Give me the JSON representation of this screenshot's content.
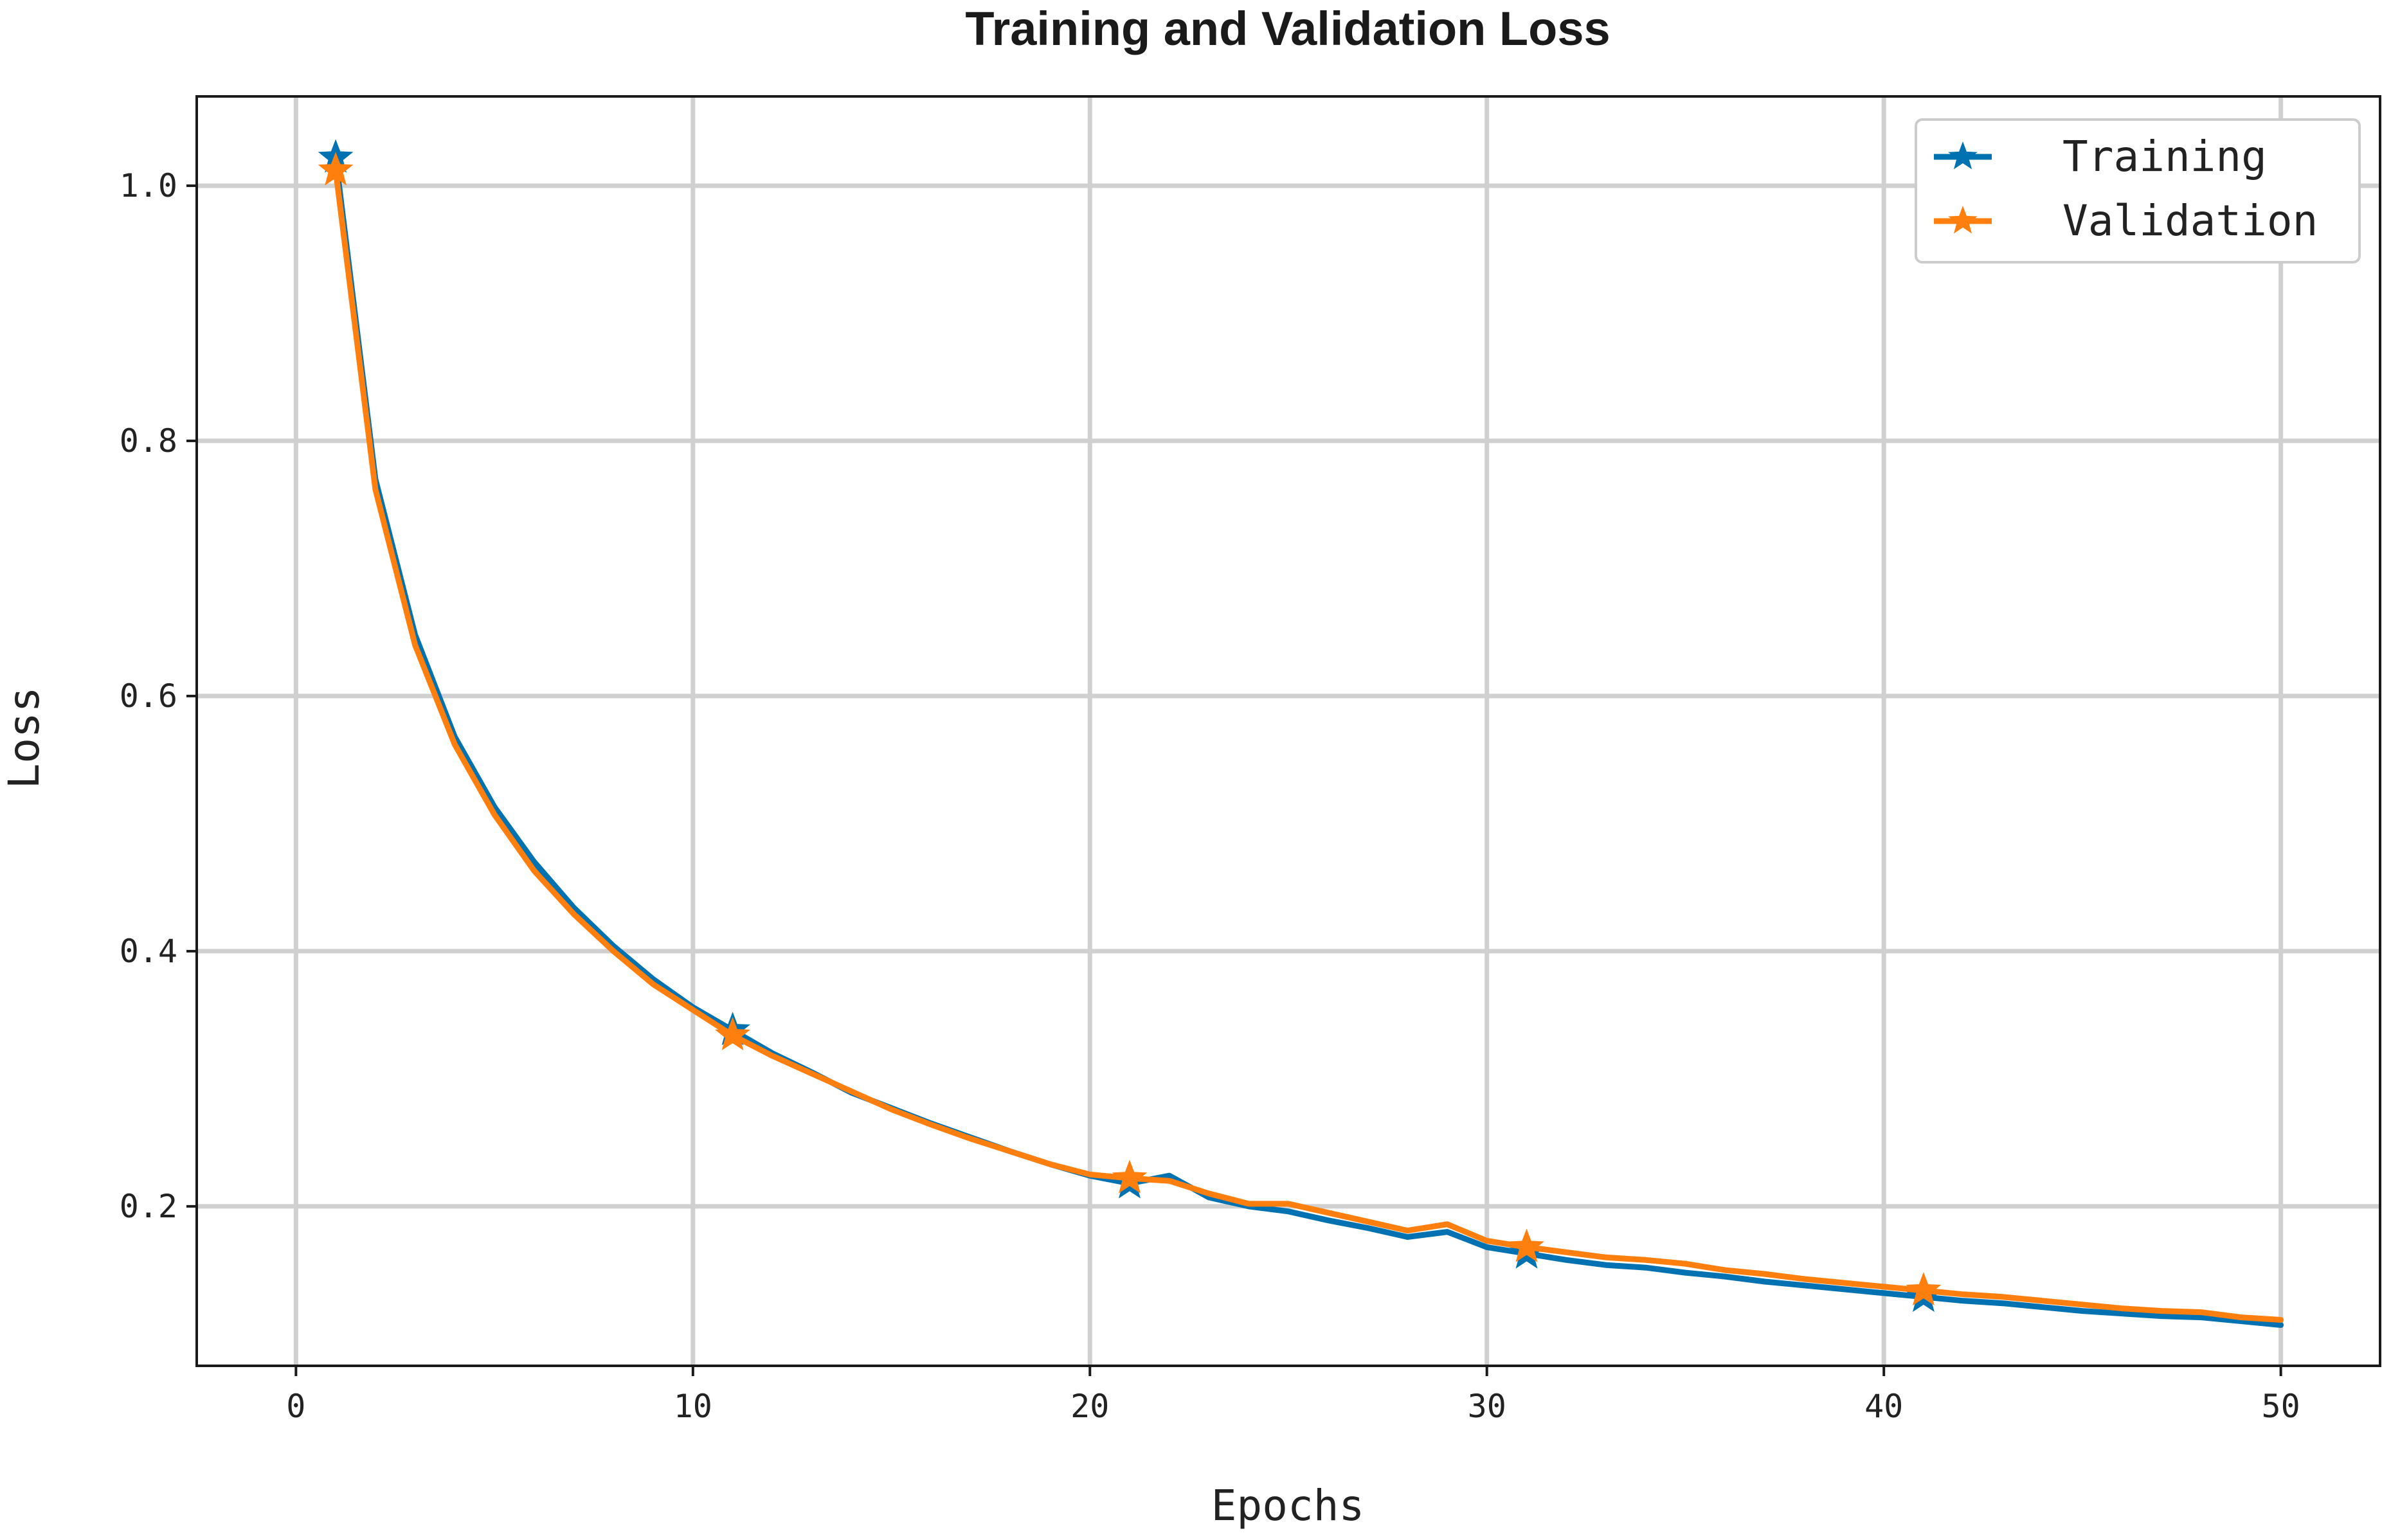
{
  "chart_data": {
    "type": "line",
    "title": "Training and Validation Loss",
    "xlabel": "Epochs",
    "ylabel": "Loss",
    "xlim": [
      -2.5,
      52.5
    ],
    "ylim": [
      0.075,
      1.07
    ],
    "xticks": [
      0,
      10,
      20,
      30,
      40,
      50
    ],
    "yticks": [
      0.2,
      0.4,
      0.6,
      0.8,
      1.0
    ],
    "xtick_labels": [
      "0",
      "10",
      "20",
      "30",
      "40",
      "50"
    ],
    "ytick_labels": [
      "0.2",
      "0.4",
      "0.6",
      "0.8",
      "1.0"
    ],
    "grid": true,
    "legend_position": "top-right",
    "marker": "star",
    "marker_every": 10,
    "x": [
      1,
      2,
      3,
      4,
      5,
      6,
      7,
      8,
      9,
      10,
      11,
      12,
      13,
      14,
      15,
      16,
      17,
      18,
      19,
      20,
      21,
      22,
      23,
      24,
      25,
      26,
      27,
      28,
      29,
      30,
      31,
      32,
      33,
      34,
      35,
      36,
      37,
      38,
      39,
      40,
      41,
      42,
      43,
      44,
      45,
      46,
      47,
      48,
      49,
      50
    ],
    "series": [
      {
        "name": "Training",
        "color": "#0072b2",
        "values": [
          1.022,
          0.77,
          0.648,
          0.568,
          0.513,
          0.47,
          0.434,
          0.404,
          0.378,
          0.356,
          0.338,
          0.32,
          0.305,
          0.289,
          0.277,
          0.265,
          0.254,
          0.243,
          0.233,
          0.224,
          0.218,
          0.224,
          0.207,
          0.2,
          0.196,
          0.189,
          0.183,
          0.176,
          0.18,
          0.168,
          0.163,
          0.158,
          0.154,
          0.152,
          0.148,
          0.145,
          0.141,
          0.138,
          0.135,
          0.132,
          0.129,
          0.126,
          0.124,
          0.121,
          0.118,
          0.116,
          0.114,
          0.113,
          0.11,
          0.107
        ]
      },
      {
        "name": "Validation",
        "color": "#ff7f0e",
        "values": [
          1.012,
          0.762,
          0.64,
          0.562,
          0.507,
          0.463,
          0.429,
          0.4,
          0.374,
          0.354,
          0.334,
          0.318,
          0.304,
          0.29,
          0.276,
          0.264,
          0.253,
          0.243,
          0.233,
          0.225,
          0.222,
          0.22,
          0.21,
          0.202,
          0.202,
          0.195,
          0.188,
          0.181,
          0.186,
          0.173,
          0.168,
          0.164,
          0.16,
          0.158,
          0.155,
          0.15,
          0.147,
          0.143,
          0.14,
          0.137,
          0.134,
          0.131,
          0.129,
          0.126,
          0.123,
          0.12,
          0.118,
          0.117,
          0.113,
          0.111
        ]
      }
    ]
  }
}
